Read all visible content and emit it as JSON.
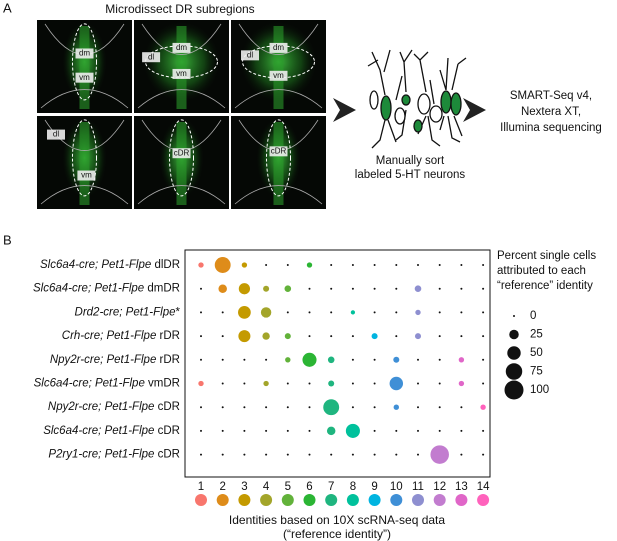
{
  "panel_a": {
    "label": "A",
    "title": "Microdissect DR subregions",
    "images": [
      {
        "labels": [
          "dm",
          "vm"
        ]
      },
      {
        "labels": [
          "dl",
          "dm",
          "vm"
        ]
      },
      {
        "labels": [
          "dl",
          "dm",
          "vm"
        ]
      },
      {
        "labels": [
          "dl",
          "vm"
        ]
      },
      {
        "labels": [
          "cDR"
        ]
      },
      {
        "labels": [
          "cDR"
        ]
      }
    ],
    "sort_text": [
      "Manually sort",
      "labeled 5-HT neurons"
    ],
    "seq_text": [
      "SMART-Seq v4,",
      "Nextera XT,",
      "Illumina sequencing"
    ]
  },
  "panel_b_label": "B",
  "chart_data": {
    "type": "dot",
    "categories": [
      "1",
      "2",
      "3",
      "4",
      "5",
      "6",
      "7",
      "8",
      "9",
      "10",
      "11",
      "12",
      "13",
      "14"
    ],
    "colors": [
      "#f8766d",
      "#de8c1a",
      "#c49a00",
      "#a3a52a",
      "#62b23a",
      "#2bb534",
      "#1fb57f",
      "#00c19c",
      "#00b4e0",
      "#3f8fd6",
      "#8e8fd0",
      "#c27ccf",
      "#e066c8",
      "#ff62bc"
    ],
    "rows": [
      {
        "genes": "Slc6a4-cre; Pet1-Flpe",
        "region": "dlDR",
        "values": [
          8,
          70,
          8,
          0,
          0,
          8,
          0,
          0,
          0,
          0,
          0,
          0,
          0,
          0
        ]
      },
      {
        "genes": "Slc6a4-cre; Pet1-Flpe",
        "region": "dmDR",
        "values": [
          0,
          20,
          35,
          10,
          12,
          0,
          0,
          0,
          0,
          0,
          12,
          0,
          0,
          0
        ]
      },
      {
        "genes": "Drd2-cre; Pet1-Flpe",
        "region": "*",
        "values": [
          0,
          0,
          45,
          30,
          0,
          0,
          0,
          5,
          0,
          0,
          8,
          0,
          0,
          0
        ]
      },
      {
        "genes": "Crh-cre; Pet1-Flpe",
        "region": "rDR",
        "values": [
          0,
          0,
          40,
          15,
          10,
          0,
          0,
          0,
          10,
          0,
          10,
          0,
          0,
          0
        ]
      },
      {
        "genes": "Npy2r-cre; Pet1-Flpe",
        "region": "rDR",
        "values": [
          0,
          0,
          0,
          0,
          8,
          55,
          12,
          0,
          0,
          10,
          0,
          0,
          8,
          0
        ]
      },
      {
        "genes": "Slc6a4-cre; Pet1-Flpe",
        "region": "vmDR",
        "values": [
          8,
          0,
          0,
          8,
          0,
          0,
          10,
          0,
          0,
          50,
          0,
          0,
          8,
          0
        ]
      },
      {
        "genes": "Npy2r-cre; Pet1-Flpe",
        "region": "cDR",
        "values": [
          0,
          0,
          0,
          0,
          0,
          0,
          70,
          0,
          0,
          8,
          0,
          0,
          0,
          8
        ]
      },
      {
        "genes": "Slc6a4-cre; Pet1-Flpe",
        "region": "cDR",
        "values": [
          0,
          0,
          0,
          0,
          0,
          0,
          20,
          55,
          0,
          0,
          0,
          0,
          0,
          0
        ]
      },
      {
        "genes": "P2ry1-cre; Pet1-Flpe",
        "region": "cDR",
        "values": [
          0,
          0,
          0,
          0,
          0,
          0,
          0,
          0,
          0,
          0,
          0,
          95,
          0,
          0
        ]
      }
    ],
    "xlabel": [
      "Identities based on 10X scRNA-seq data",
      "(“reference identity”)"
    ],
    "size_legend": {
      "title": [
        "Percent single cells",
        "attributed to each",
        "“reference” identity"
      ],
      "values": [
        0,
        25,
        50,
        75,
        100
      ]
    }
  }
}
